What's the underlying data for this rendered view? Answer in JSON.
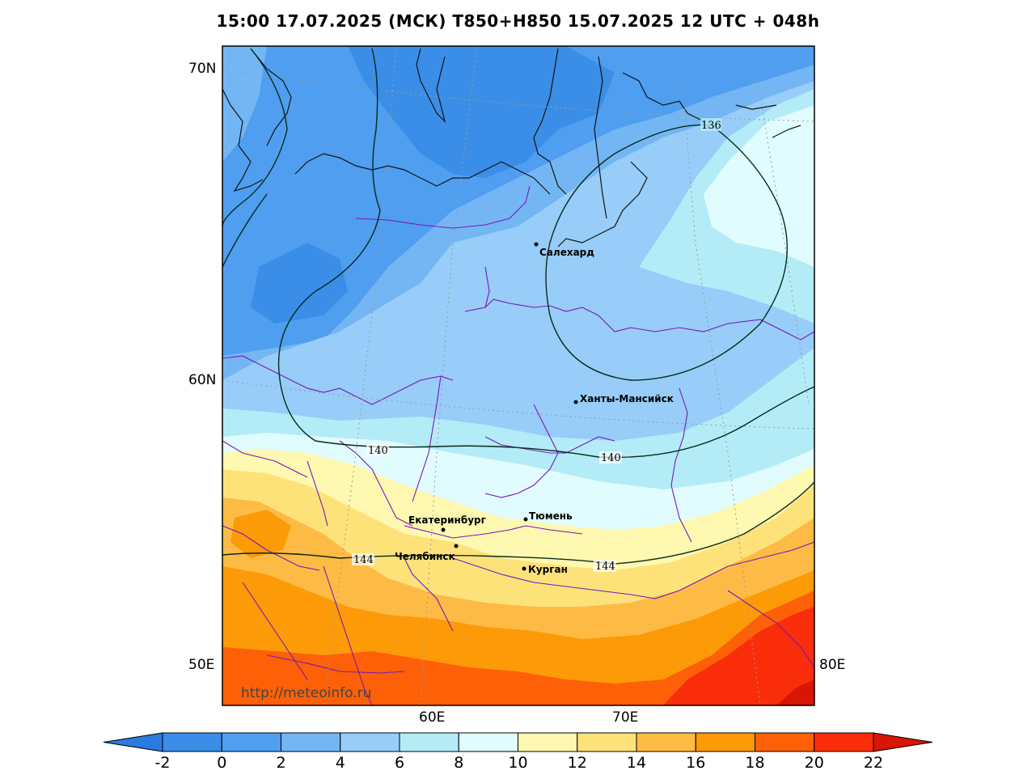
{
  "title": "15:00 17.07.2025 (МСК) T850+H850 15.07.2025 12 UTC + 048h",
  "watermark": "http://meteoinfo.ru",
  "lat_labels": [
    "70N",
    "60N",
    "50E"
  ],
  "lon_labels": [
    "60E",
    "70E",
    "80E"
  ],
  "cities": [
    {
      "name": "Салехард"
    },
    {
      "name": "Ханты-Мансийск"
    },
    {
      "name": "Тюмень"
    },
    {
      "name": "Екатеринбург"
    },
    {
      "name": "Челябинск"
    },
    {
      "name": "Курган"
    }
  ],
  "isolines": {
    "iso_136": "136",
    "iso_140_a": "140",
    "iso_140_b": "140",
    "iso_144_a": "144",
    "iso_144_b": "144"
  },
  "colorbar": {
    "ticks": [
      "-2",
      "0",
      "2",
      "4",
      "6",
      "8",
      "10",
      "12",
      "14",
      "16",
      "18",
      "20",
      "22"
    ],
    "colors": [
      "#3a8ee8",
      "#4f9ef0",
      "#74b6f4",
      "#97cdf8",
      "#b3ecf7",
      "#e1fcfe",
      "#fff8b0",
      "#fde27a",
      "#fdbb45",
      "#fd9a07",
      "#fd6007",
      "#fa2d0b"
    ],
    "under_color": "#2b7be0",
    "over_color": "#d91505"
  },
  "temperature_colors": {
    "t_m2_0": "#3a8ee8",
    "t_0_2": "#4f9ef0",
    "t_2_4": "#74b6f4",
    "t_4_6": "#97cdf8",
    "t_6_8": "#b3ecf7",
    "t_8_10": "#e1fcfe",
    "t_10_12": "#fff8b0",
    "t_12_14": "#fde27a",
    "t_14_16": "#fdbb45",
    "t_16_18": "#fd9a07",
    "t_18_20": "#fd6007",
    "t_20_22": "#fa2d0b",
    "t_over_22": "#d91505"
  }
}
